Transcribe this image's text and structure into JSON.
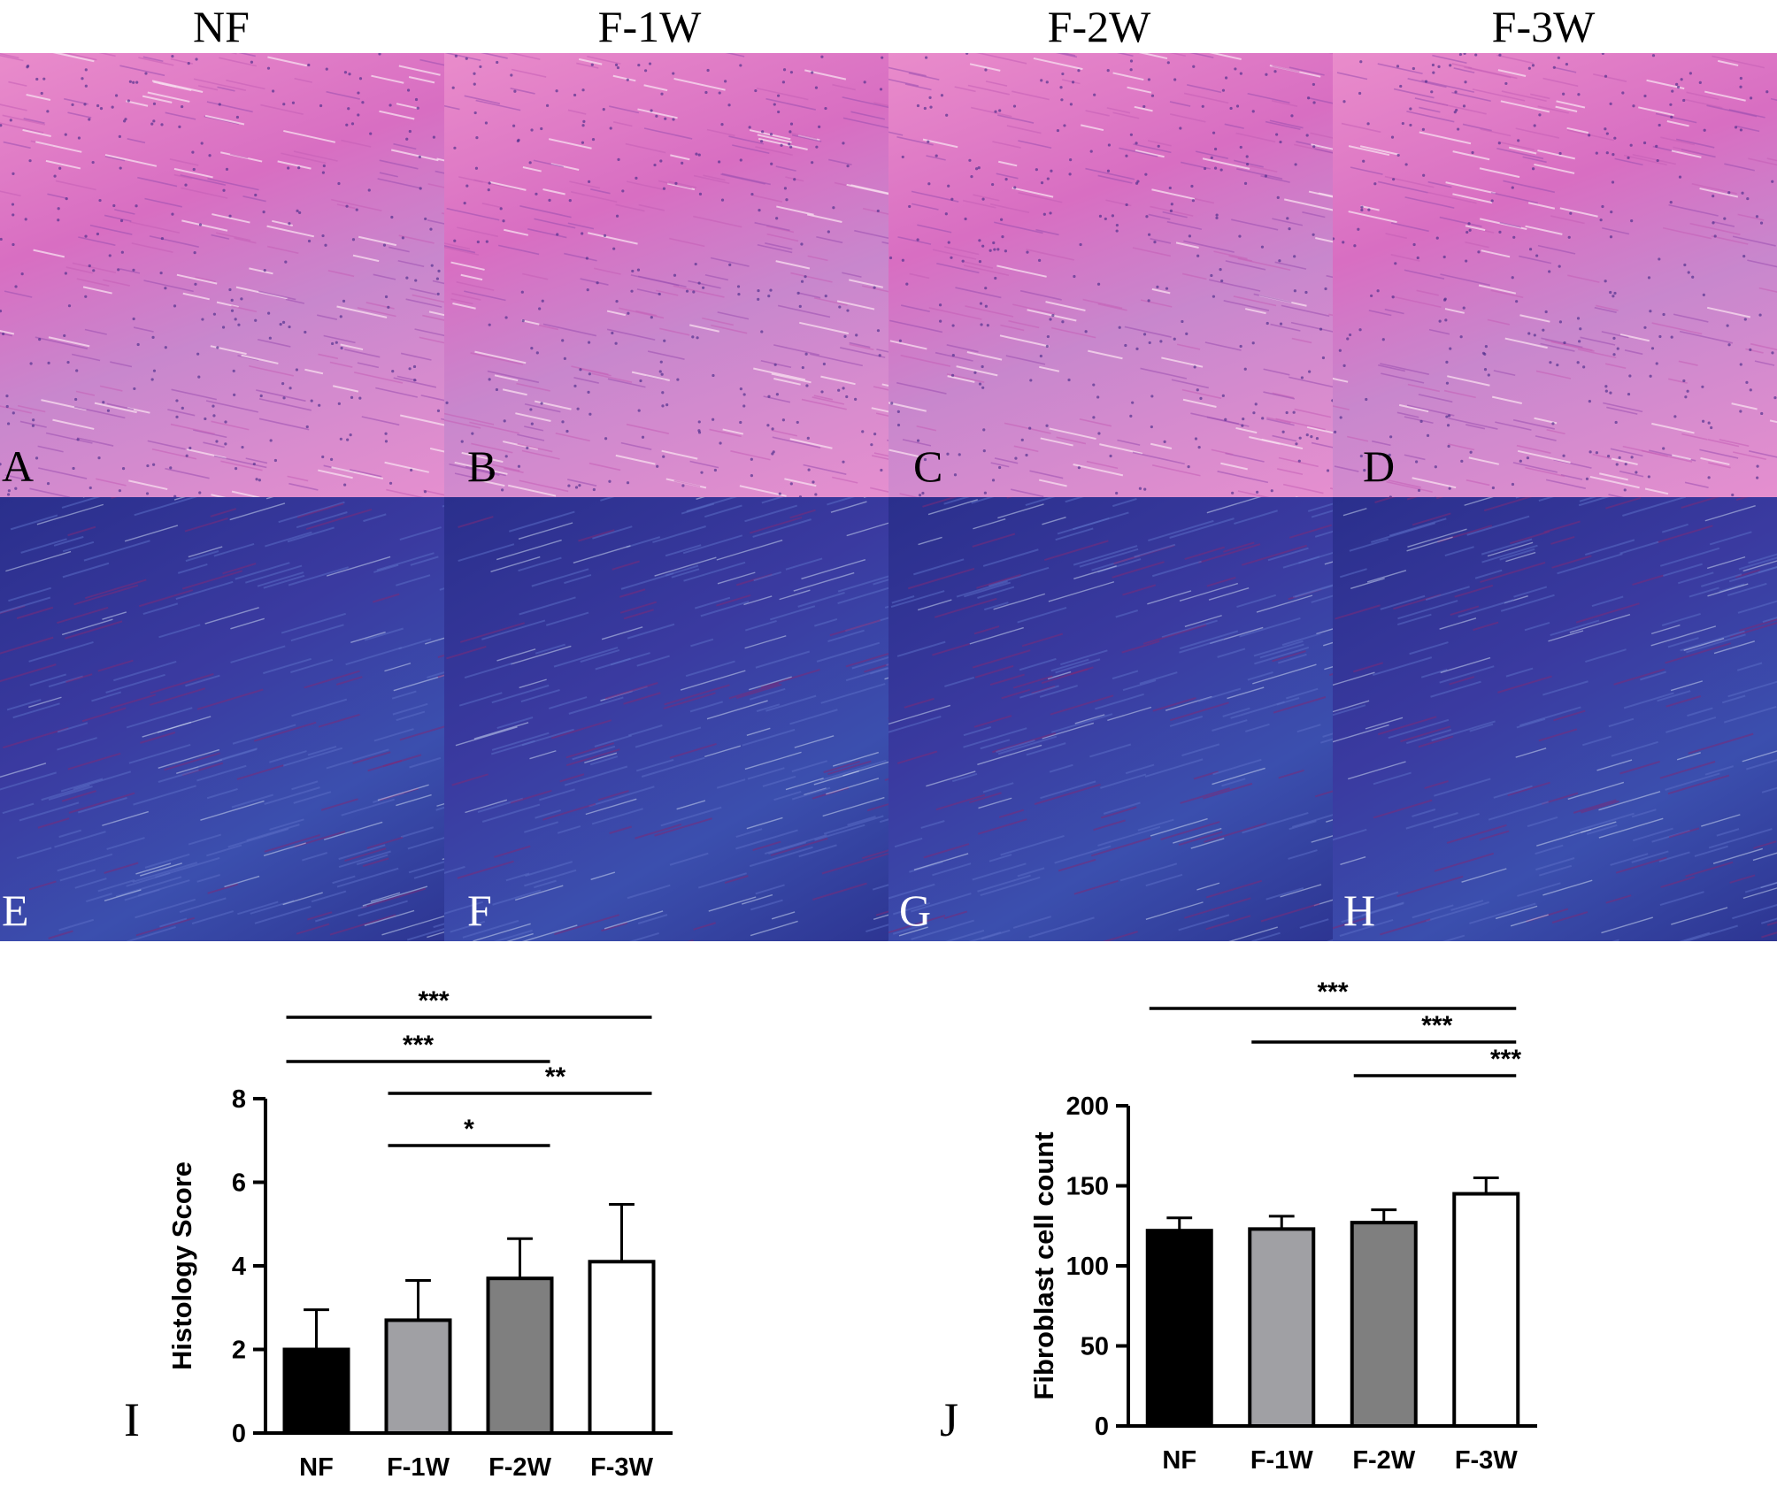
{
  "columns": [
    "NF",
    "F-1W",
    "F-2W",
    "F-3W"
  ],
  "panels": {
    "he": [
      "A",
      "B",
      "C",
      "D"
    ],
    "mt": [
      "E",
      "F",
      "G",
      "H"
    ]
  },
  "colors": {
    "he_stain": "#de7cc8",
    "mt_stain": "#3338a0",
    "bar_nf": "#000000",
    "bar_f1w": "#a0a0a4",
    "bar_f2w": "#7f7f7f",
    "bar_f3w": "#ffffff"
  },
  "chart_data": [
    {
      "type": "bar",
      "panel_letter": "I",
      "categories": [
        "NF",
        "F-1W",
        "F-2W",
        "F-3W"
      ],
      "values": [
        2.0,
        2.7,
        3.7,
        4.1
      ],
      "errors": [
        0.95,
        0.95,
        0.95,
        1.37
      ],
      "title": "",
      "xlabel": "",
      "ylabel": "Histology Score",
      "ylim": [
        0,
        8
      ],
      "yticks": [
        "0",
        "2",
        "4",
        "6",
        "8"
      ],
      "significance": [
        {
          "from": "NF",
          "to": "F-3W",
          "label": "***"
        },
        {
          "from": "NF",
          "to": "F-2W",
          "label": "***"
        },
        {
          "from": "F-1W",
          "to": "F-3W",
          "label": "**"
        },
        {
          "from": "F-1W",
          "to": "F-2W",
          "label": "*"
        }
      ]
    },
    {
      "type": "bar",
      "panel_letter": "J",
      "categories": [
        "NF",
        "F-1W",
        "F-2W",
        "F-3W"
      ],
      "values": [
        122,
        123,
        127,
        145
      ],
      "errors": [
        8,
        8,
        8,
        10
      ],
      "title": "",
      "xlabel": "",
      "ylabel": "Fibroblast cell count",
      "ylim": [
        0,
        200
      ],
      "yticks": [
        "0",
        "50",
        "100",
        "150",
        "200"
      ],
      "significance": [
        {
          "from": "NF",
          "to": "F-3W",
          "label": "***"
        },
        {
          "from": "F-1W",
          "to": "F-3W",
          "label": "***"
        },
        {
          "from": "F-2W",
          "to": "F-3W",
          "label": "***"
        }
      ]
    }
  ]
}
